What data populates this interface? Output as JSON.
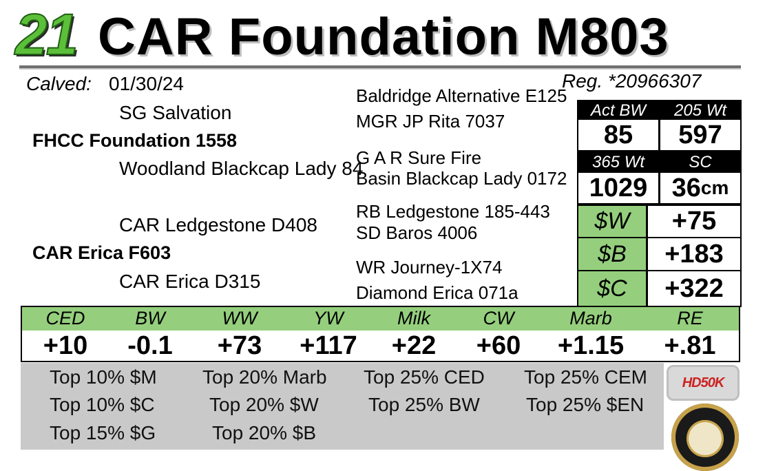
{
  "header": {
    "lot_number": "21",
    "name": "CAR Foundation M803"
  },
  "info": {
    "calved_label": "Calved:",
    "calved_date": "01/30/24",
    "registration": "Reg. *20966307"
  },
  "pedigree": {
    "sire": "FHCC Foundation 1558",
    "sire_sire": "SG Salvation",
    "sire_dam": "Woodland Blackcap Lady 84",
    "dam": "CAR Erica F603",
    "dam_sire": "CAR Ledgestone D408",
    "dam_dam": "CAR Erica D315",
    "gen3": [
      "Baldridge Alternative E125",
      "MGR JP Rita 7037",
      "G A R Sure Fire",
      "Basin Blackcap Lady 0172",
      "RB Ledgestone 185-443",
      "SD Baros 4006",
      "WR Journey-1X74",
      "Diamond Erica 071a"
    ]
  },
  "performance": {
    "act_bw_label": "Act BW",
    "act_bw": "85",
    "wt205_label": "205 Wt",
    "wt205": "597",
    "wt365_label": "365 Wt",
    "wt365": "1029",
    "sc_label": "SC",
    "sc_value": "36",
    "sc_unit": "cm"
  },
  "indexes": [
    {
      "label": "$W",
      "value": "+75"
    },
    {
      "label": "$B",
      "value": "+183"
    },
    {
      "label": "$C",
      "value": "+322"
    }
  ],
  "epds": [
    {
      "label": "CED",
      "value": "+10"
    },
    {
      "label": "BW",
      "value": "-0.1"
    },
    {
      "label": "WW",
      "value": "+73"
    },
    {
      "label": "YW",
      "value": "+117"
    },
    {
      "label": "Milk",
      "value": "+22"
    },
    {
      "label": "CW",
      "value": "+60"
    },
    {
      "label": "Marb",
      "value": "+1.15"
    },
    {
      "label": "RE",
      "value": "+.81"
    }
  ],
  "rankings": [
    "Top 10% $M",
    "Top 10% $C",
    "Top 15% $G",
    "Top 20% Marb",
    "Top 20% $W",
    "Top 20% $B",
    "Top 25% CED",
    "Top 25% BW",
    "Top 25% CEM",
    "Top 25% $EN"
  ],
  "logos": {
    "hd50k_text": "HD50K",
    "colors": {
      "accent_green": "#95cf7d",
      "lot_green": "#5cbf3a",
      "band_gray": "#c9c9c9"
    }
  }
}
